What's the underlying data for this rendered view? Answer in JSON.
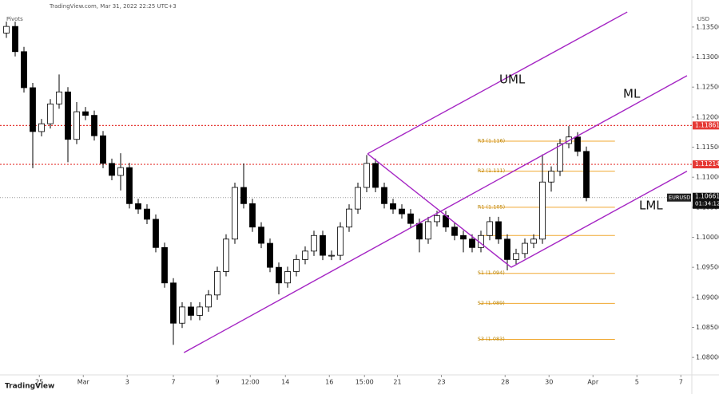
{
  "header": {
    "source": "TradingView.com, Mar 31, 2022 22:25 UTC+3",
    "indicator": "Pivots",
    "currency": "USD",
    "logo": "TradingView"
  },
  "chart_data": {
    "type": "candlestick",
    "symbol": "EURUSD",
    "last_price": {
      "value": 1.10661,
      "label": "1.10661"
    },
    "countdown": "01:34:12",
    "up_color": "#ffffff",
    "down_color": "#000000",
    "x": [
      0,
      2,
      4,
      6,
      8,
      10,
      12,
      14,
      16,
      18,
      20,
      22,
      24,
      26,
      28,
      30,
      32,
      34,
      36,
      38,
      40,
      42,
      44,
      46,
      48,
      50,
      52,
      54,
      56,
      58,
      60,
      62,
      64,
      66,
      68,
      70,
      72,
      74,
      76,
      78,
      80,
      82,
      84,
      86,
      88,
      90,
      92,
      94,
      96,
      98,
      100,
      102,
      104,
      106,
      108,
      110,
      112,
      114,
      116,
      118,
      120,
      122,
      124,
      126,
      128,
      130,
      132
    ],
    "open": [
      1.134,
      1.1351,
      1.1309,
      1.1249,
      1.1176,
      1.1189,
      1.1222,
      1.1242,
      1.1163,
      1.1209,
      1.1203,
      1.1169,
      1.1123,
      1.1103,
      1.1116,
      1.1056,
      1.1047,
      1.103,
      1.0983,
      1.0924,
      1.0857,
      1.0884,
      1.087,
      1.0884,
      1.0904,
      1.0943,
      1.0997,
      1.1083,
      1.1056,
      1.1017,
      1.099,
      1.095,
      1.0924,
      1.0943,
      1.0963,
      1.0977,
      1.1003,
      1.097,
      1.097,
      1.1017,
      1.1047,
      1.1083,
      1.1123,
      1.1083,
      1.1056,
      1.1047,
      1.1039,
      1.1023,
      1.0997,
      1.1026,
      1.1036,
      1.1017,
      1.1003,
      1.0997,
      1.0983,
      1.1003,
      1.1026,
      1.0997,
      1.0963,
      1.0973,
      1.099,
      1.0997,
      1.1092,
      1.111,
      1.1156,
      1.1167,
      1.1143
    ],
    "high": [
      1.1359,
      1.1359,
      1.1317,
      1.1257,
      1.1197,
      1.123,
      1.1271,
      1.125,
      1.1225,
      1.1217,
      1.1211,
      1.1177,
      1.1131,
      1.114,
      1.1124,
      1.1064,
      1.1055,
      1.1038,
      1.0991,
      1.0932,
      1.0892,
      1.0892,
      1.0892,
      1.0912,
      1.0951,
      1.1005,
      1.1091,
      1.1123,
      1.1064,
      1.1025,
      1.0998,
      1.0958,
      1.0951,
      1.0971,
      1.0985,
      1.1011,
      1.1011,
      1.0978,
      1.1025,
      1.1055,
      1.1091,
      1.1137,
      1.1131,
      1.1091,
      1.1064,
      1.1055,
      1.1047,
      1.1031,
      1.1034,
      1.1044,
      1.1044,
      1.1025,
      1.1011,
      1.1005,
      1.1011,
      1.1034,
      1.1034,
      1.1005,
      1.0981,
      1.0998,
      1.1005,
      1.1138,
      1.1118,
      1.1164,
      1.1185,
      1.1175,
      1.1151
    ],
    "low": [
      1.1332,
      1.1301,
      1.1241,
      1.1115,
      1.1168,
      1.1181,
      1.1214,
      1.1125,
      1.1155,
      1.1195,
      1.1161,
      1.1115,
      1.1095,
      1.1078,
      1.1048,
      1.1039,
      1.1022,
      1.0975,
      1.0916,
      1.0821,
      1.0849,
      1.0862,
      1.0862,
      1.0876,
      1.0896,
      1.0935,
      1.0989,
      1.1048,
      1.1009,
      1.0982,
      1.0942,
      1.0905,
      1.0916,
      1.0935,
      1.0955,
      1.0969,
      1.0962,
      1.0962,
      1.0962,
      1.1009,
      1.1039,
      1.1075,
      1.1075,
      1.1048,
      1.1039,
      1.1031,
      1.1015,
      1.0975,
      1.0989,
      1.1018,
      1.1009,
      1.0995,
      1.0975,
      1.0975,
      1.0975,
      1.0995,
      1.0989,
      1.0945,
      1.0955,
      1.0965,
      1.0982,
      1.0989,
      1.1076,
      1.1102,
      1.1148,
      1.1135,
      1.106
    ],
    "close": [
      1.1351,
      1.1309,
      1.1249,
      1.1176,
      1.1189,
      1.1222,
      1.1242,
      1.1163,
      1.1209,
      1.1203,
      1.1169,
      1.1123,
      1.1103,
      1.1116,
      1.1056,
      1.1047,
      1.103,
      1.0983,
      1.0924,
      1.0857,
      1.0884,
      1.087,
      1.0884,
      1.0904,
      1.0943,
      1.0997,
      1.1083,
      1.1056,
      1.1017,
      1.099,
      1.095,
      1.0924,
      1.0943,
      1.0963,
      1.0977,
      1.1003,
      1.097,
      1.097,
      1.1017,
      1.1047,
      1.1083,
      1.1123,
      1.1083,
      1.1056,
      1.1047,
      1.1039,
      1.1023,
      1.0997,
      1.1026,
      1.1036,
      1.1017,
      1.1003,
      1.0997,
      1.0983,
      1.1003,
      1.1026,
      1.0997,
      1.0963,
      1.0973,
      1.099,
      1.0997,
      1.1092,
      1.111,
      1.1156,
      1.1167,
      1.1143,
      1.10661
    ],
    "xlim": [
      0,
      156
    ],
    "ylim": [
      1.0771,
      1.1395
    ],
    "xticks": [
      {
        "value": 7.5,
        "label": "25"
      },
      {
        "value": 17.5,
        "label": "Mar"
      },
      {
        "value": 27.5,
        "label": "3"
      },
      {
        "value": 38,
        "label": "7"
      },
      {
        "value": 48,
        "label": "9"
      },
      {
        "value": 55.5,
        "label": "12:00"
      },
      {
        "value": 63.5,
        "label": "14"
      },
      {
        "value": 73.5,
        "label": "16"
      },
      {
        "value": 81.5,
        "label": "15:00"
      },
      {
        "value": 89,
        "label": "21"
      },
      {
        "value": 99,
        "label": "23"
      },
      {
        "value": 113.5,
        "label": "28"
      },
      {
        "value": 123.5,
        "label": "30"
      },
      {
        "value": 133.5,
        "label": "Apr"
      },
      {
        "value": 143.5,
        "label": "5"
      },
      {
        "value": 153.5,
        "label": "7"
      }
    ],
    "yticks": [
      {
        "value": 1.135,
        "label": "1.13500"
      },
      {
        "value": 1.13,
        "label": "1.13000"
      },
      {
        "value": 1.125,
        "label": "1.12500"
      },
      {
        "value": 1.12,
        "label": "1.12000"
      },
      {
        "value": 1.115,
        "label": "1.11500"
      },
      {
        "value": 1.11,
        "label": "1.11000"
      },
      {
        "value": 1.105,
        "label": "1.10500"
      },
      {
        "value": 1.1,
        "label": "1.10000"
      },
      {
        "value": 1.095,
        "label": "1.09500"
      },
      {
        "value": 1.09,
        "label": "1.09000"
      },
      {
        "value": 1.085,
        "label": "1.08500"
      },
      {
        "value": 1.08,
        "label": "1.08000"
      }
    ],
    "levels": [
      {
        "value": 1.11861,
        "label": "1.11861",
        "color": "#e53935"
      },
      {
        "value": 1.11214,
        "label": "1.11214",
        "color": "#e53935"
      }
    ],
    "pivots": {
      "color": "#f0a830",
      "xrange": [
        107.6,
        138.5
      ],
      "values": [
        1.116,
        1.111,
        1.105,
        1.1003,
        1.094,
        1.089,
        1.083
      ],
      "labels": [
        "R3 (1.116)",
        "R2 (1.111)",
        "R1 (1.105)",
        null,
        "S1 (1.094)",
        "S2 (1.089)",
        "S3 (1.083)"
      ]
    },
    "pitchfork": {
      "color": "#a526c4",
      "lines": [
        {
          "name": "UML",
          "x": [
            82.2,
            141.3
          ],
          "y": [
            1.1139,
            1.1375
          ]
        },
        {
          "name": "ML",
          "x": [
            40.4,
            154.9
          ],
          "y": [
            1.0808,
            1.1269
          ]
        },
        {
          "name": "LML",
          "x": [
            114.9,
            154.9
          ],
          "y": [
            1.095,
            1.111
          ]
        },
        {
          "name": null,
          "x": [
            82.2,
            114.9
          ],
          "y": [
            1.1139,
            1.095
          ]
        }
      ]
    }
  }
}
